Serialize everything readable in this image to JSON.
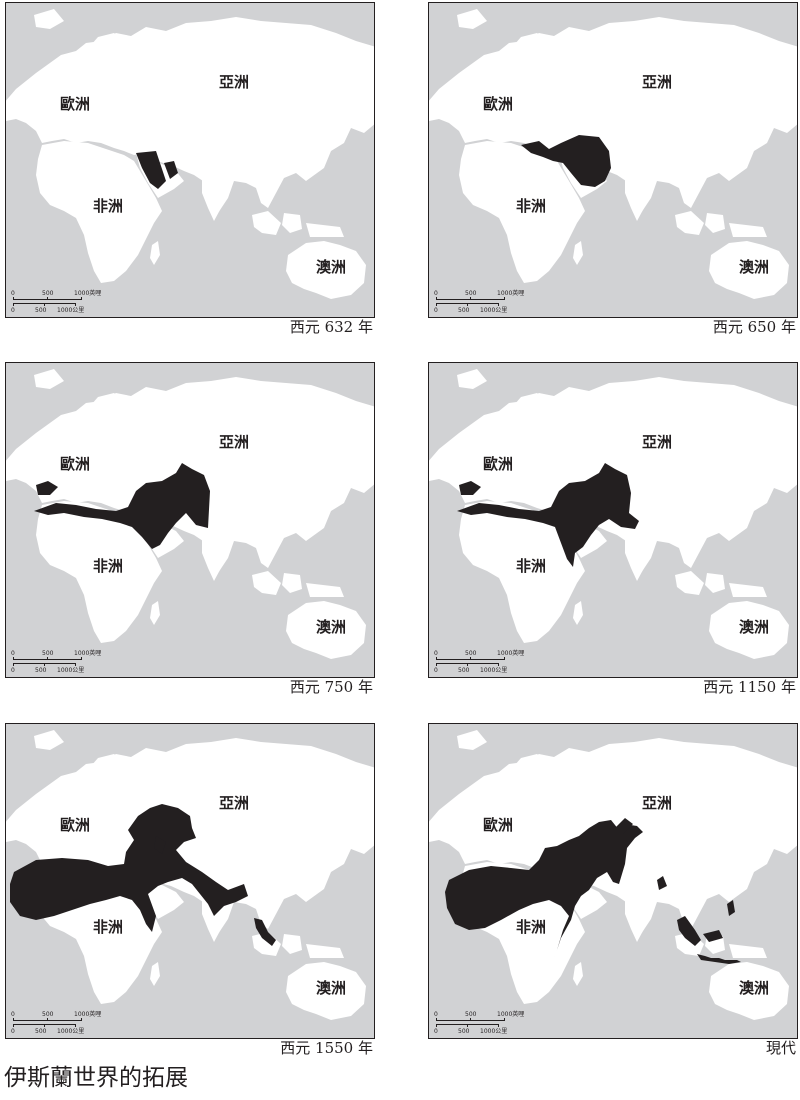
{
  "title": "伊斯蘭世界的拓展",
  "colors": {
    "sea": "#d1d2d4",
    "land": "#ffffff",
    "islamic_world": "#231f20",
    "border": "#231f20"
  },
  "labels": {
    "europe": "歐洲",
    "asia": "亞洲",
    "africa": "非洲",
    "oceania": "澳洲"
  },
  "scale_bar": {
    "mi_ticks": [
      "0",
      "500",
      "1000英哩"
    ],
    "km_ticks": [
      "0",
      "500",
      "1000公里"
    ]
  },
  "panels": [
    {
      "caption": "西元 632 年",
      "stage": "632"
    },
    {
      "caption": "西元 650 年",
      "stage": "650"
    },
    {
      "caption": "西元 750 年",
      "stage": "750"
    },
    {
      "caption": "西元 1150 年",
      "stage": "1150"
    },
    {
      "caption": "西元 1550 年",
      "stage": "1550"
    },
    {
      "caption": "現代",
      "stage": "modern"
    }
  ]
}
